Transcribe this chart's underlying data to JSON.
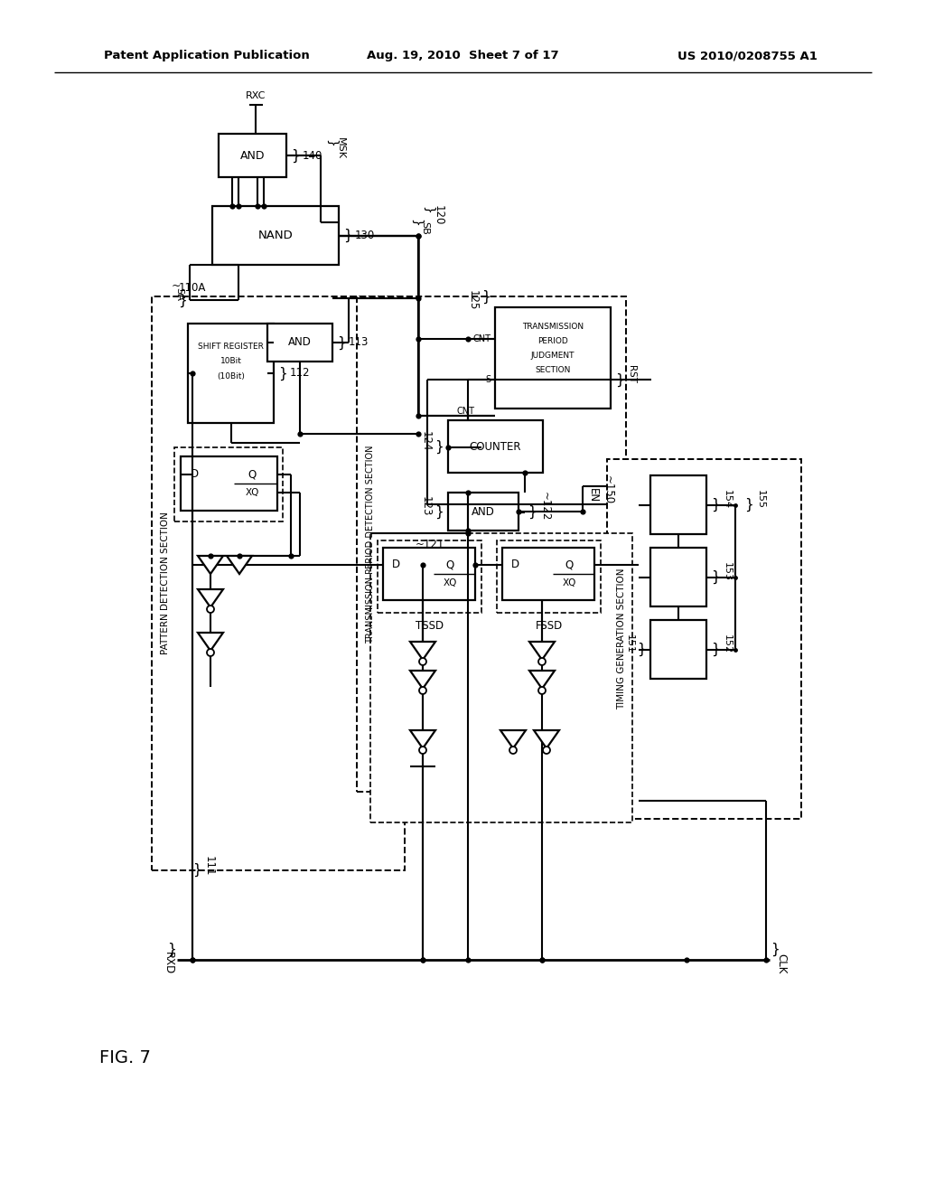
{
  "header_left": "Patent Application Publication",
  "header_mid": "Aug. 19, 2010  Sheet 7 of 17",
  "header_right": "US 2010/0208755 A1",
  "fig_label": "FIG. 7",
  "bg_color": "#ffffff"
}
